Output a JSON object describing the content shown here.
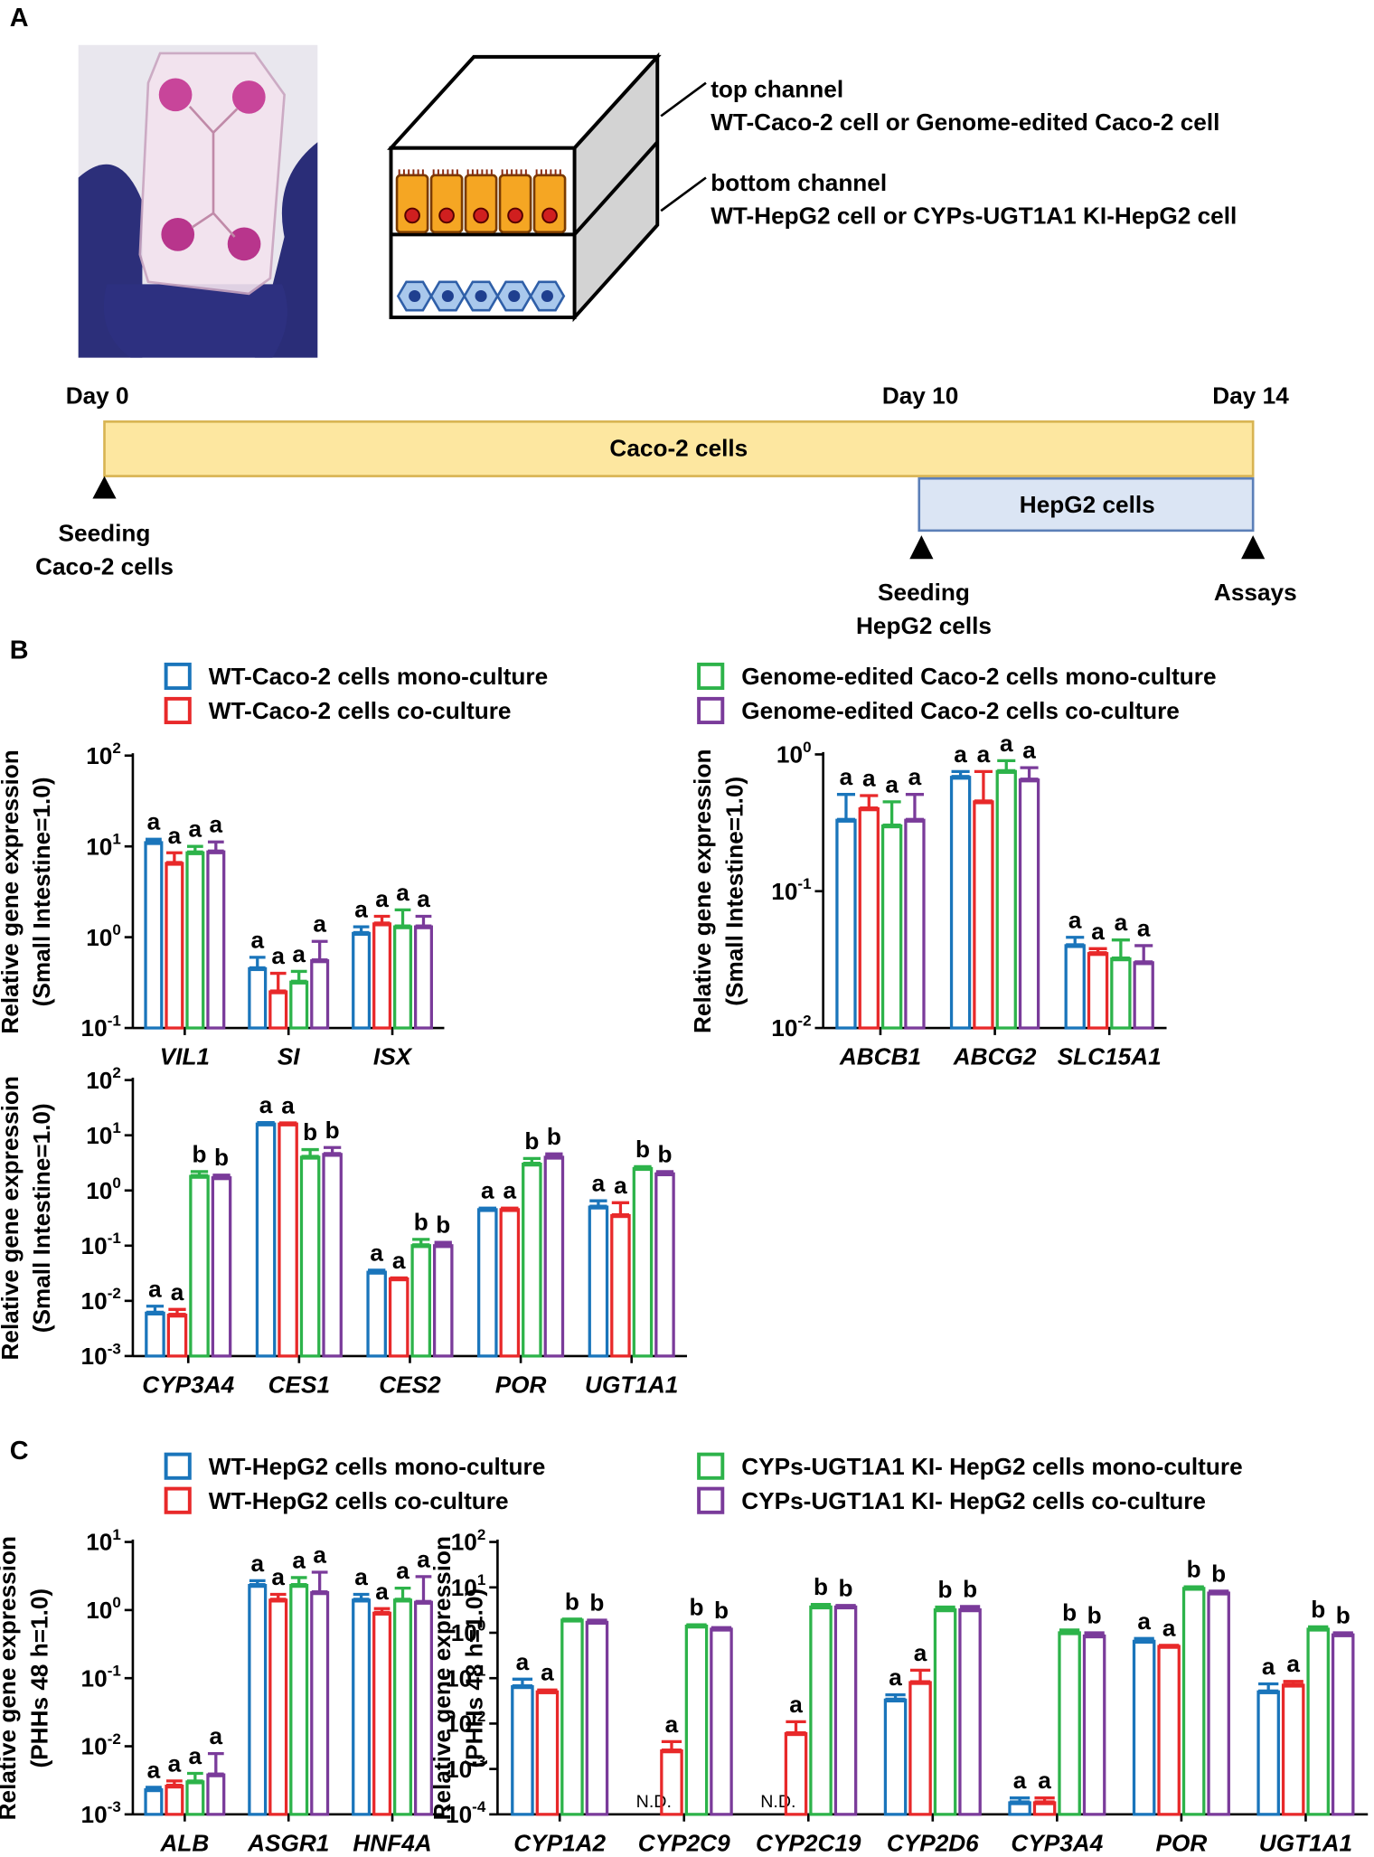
{
  "letters": [
    "A",
    "B",
    "C"
  ],
  "panel_a": {
    "top_channel": "top channel",
    "top_cells": "WT-Caco-2 cell or Genome-edited Caco-2 cell",
    "bottom_channel": "bottom channel",
    "bottom_cells": "WT-HepG2 cell or CYPs-UGT1A1 KI-HepG2 cell",
    "day0": "Day 0",
    "day10": "Day 10",
    "day14": "Day 14",
    "caco_bar": "Caco-2 cells",
    "hepg2_bar": "HepG2 cells",
    "seed_caco": [
      "Seeding",
      "Caco-2 cells"
    ],
    "seed_hepg2": [
      "Seeding",
      "HepG2 cells"
    ],
    "assays": "Assays"
  },
  "legends": {
    "B": [
      "WT-Caco-2 cells mono-culture",
      "WT-Caco-2 cells co-culture",
      "Genome-edited Caco-2 cells mono-culture",
      "Genome-edited Caco-2 cells co-culture"
    ],
    "C": [
      "WT-HepG2 cells mono-culture",
      "WT-HepG2 cells co-culture",
      "CYPs-UGT1A1 KI- HepG2 cells mono-culture",
      "CYPs-UGT1A1 KI- HepG2 cells co-culture"
    ]
  },
  "chart_data": [
    {
      "type": "bar",
      "ylog": true,
      "ylabel": [
        "Relative gene expression",
        "(Small Intestine=1.0)"
      ],
      "categories": [
        "VIL1",
        "SI",
        "ISX"
      ],
      "ylim": [
        0.1,
        100
      ],
      "yticks": [
        {
          "value": 0.1,
          "label": "10",
          "exp": "-1"
        },
        {
          "value": 1,
          "label": "10",
          "exp": "0"
        },
        {
          "value": 10,
          "label": "10",
          "exp": "1"
        },
        {
          "value": 100,
          "label": "10",
          "exp": "2"
        }
      ],
      "series": [
        {
          "color": "#1a75bb",
          "values": [
            11,
            0.45,
            1.1
          ],
          "errors": [
            1,
            0.15,
            0.2
          ],
          "letters": [
            "a",
            "a",
            "a"
          ]
        },
        {
          "color": "#e8292a",
          "values": [
            6.5,
            0.25,
            1.4
          ],
          "errors": [
            2,
            0.15,
            0.3
          ],
          "letters": [
            "a",
            "a",
            "a"
          ]
        },
        {
          "color": "#2db34a",
          "values": [
            8.5,
            0.32,
            1.3
          ],
          "errors": [
            1.5,
            0.1,
            0.7
          ],
          "letters": [
            "a",
            "a",
            "a"
          ]
        },
        {
          "color": "#7a3b9a",
          "values": [
            8.7,
            0.55,
            1.3
          ],
          "errors": [
            2.5,
            0.35,
            0.4
          ],
          "letters": [
            "a",
            "a",
            "a"
          ]
        }
      ]
    },
    {
      "type": "bar",
      "ylog": true,
      "ylabel": [
        "Relative gene expression",
        "(Small Intestine=1.0)"
      ],
      "categories": [
        "ABCB1",
        "ABCG2",
        "SLC15A1"
      ],
      "ylim": [
        0.01,
        1
      ],
      "yticks": [
        {
          "value": 0.01,
          "label": "10",
          "exp": "-2"
        },
        {
          "value": 0.1,
          "label": "10",
          "exp": "-1"
        },
        {
          "value": 1,
          "label": "10",
          "exp": "0"
        }
      ],
      "series": [
        {
          "color": "#1a75bb",
          "values": [
            0.33,
            0.68,
            0.04
          ],
          "errors": [
            0.18,
            0.07,
            0.006
          ],
          "letters": [
            "a",
            "a",
            "a"
          ]
        },
        {
          "color": "#e8292a",
          "values": [
            0.4,
            0.45,
            0.035
          ],
          "errors": [
            0.1,
            0.3,
            0.003
          ],
          "letters": [
            "a",
            "a",
            "a"
          ]
        },
        {
          "color": "#2db34a",
          "values": [
            0.3,
            0.75,
            0.032
          ],
          "errors": [
            0.15,
            0.15,
            0.012
          ],
          "letters": [
            "a",
            "a",
            "a"
          ]
        },
        {
          "color": "#7a3b9a",
          "values": [
            0.33,
            0.65,
            0.03
          ],
          "errors": [
            0.18,
            0.15,
            0.01
          ],
          "letters": [
            "a",
            "a",
            "a"
          ]
        }
      ]
    },
    {
      "type": "bar",
      "ylog": true,
      "ylabel": [
        "Relative gene expression",
        "(Small Intestine=1.0)"
      ],
      "categories": [
        "CYP3A4",
        "CES1",
        "CES2",
        "POR",
        "UGT1A1"
      ],
      "ylim": [
        0.001,
        100
      ],
      "yticks": [
        {
          "value": 0.001,
          "label": "10",
          "exp": "-3"
        },
        {
          "value": 0.01,
          "label": "10",
          "exp": "-2"
        },
        {
          "value": 0.1,
          "label": "10",
          "exp": "-1"
        },
        {
          "value": 1,
          "label": "10",
          "exp": "0"
        },
        {
          "value": 10,
          "label": "10",
          "exp": "1"
        },
        {
          "value": 100,
          "label": "10",
          "exp": "2"
        }
      ],
      "series": [
        {
          "color": "#1a75bb",
          "values": [
            0.006,
            16,
            0.033,
            0.45,
            0.5
          ],
          "errors": [
            0.002,
            1,
            0.003,
            0.03,
            0.15
          ],
          "letters": [
            "a",
            "a",
            "a",
            "a",
            "a"
          ]
        },
        {
          "color": "#e8292a",
          "values": [
            0.0055,
            16,
            0.025,
            0.45,
            0.35
          ],
          "errors": [
            0.0015,
            0.8,
            0.001,
            0.03,
            0.25
          ],
          "letters": [
            "a",
            "a",
            "a",
            "a",
            "a"
          ]
        },
        {
          "color": "#2db34a",
          "values": [
            1.8,
            4,
            0.1,
            3,
            2.5
          ],
          "errors": [
            0.4,
            1.5,
            0.03,
            0.8,
            0.2
          ],
          "letters": [
            "b",
            "b",
            "b",
            "b",
            "b"
          ]
        },
        {
          "color": "#7a3b9a",
          "values": [
            1.7,
            4.5,
            0.1,
            4,
            2
          ],
          "errors": [
            0.2,
            1.5,
            0.015,
            0.6,
            0.2
          ],
          "letters": [
            "b",
            "b",
            "b",
            "b",
            "b"
          ]
        }
      ]
    },
    {
      "type": "bar",
      "ylog": true,
      "ylabel": [
        "Relative gene expression",
        "(PHHs 48 h=1.0)"
      ],
      "categories": [
        "ALB",
        "ASGR1",
        "HNF4A"
      ],
      "ylim": [
        0.001,
        10
      ],
      "yticks": [
        {
          "value": 0.001,
          "label": "10",
          "exp": "-3"
        },
        {
          "value": 0.01,
          "label": "10",
          "exp": "-2"
        },
        {
          "value": 0.1,
          "label": "10",
          "exp": "-1"
        },
        {
          "value": 1,
          "label": "10",
          "exp": "0"
        },
        {
          "value": 10,
          "label": "10",
          "exp": "1"
        }
      ],
      "series": [
        {
          "color": "#1a75bb",
          "values": [
            0.0023,
            2.3,
            1.4
          ],
          "errors": [
            0.0002,
            0.4,
            0.3
          ],
          "letters": [
            "a",
            "a",
            "a"
          ]
        },
        {
          "color": "#e8292a",
          "values": [
            0.0026,
            1.4,
            0.9
          ],
          "errors": [
            0.0005,
            0.3,
            0.15
          ],
          "letters": [
            "a",
            "a",
            "a"
          ]
        },
        {
          "color": "#2db34a",
          "values": [
            0.003,
            2.3,
            1.4
          ],
          "errors": [
            0.001,
            0.7,
            0.7
          ],
          "letters": [
            "a",
            "a",
            "a"
          ]
        },
        {
          "color": "#7a3b9a",
          "values": [
            0.0038,
            1.8,
            1.3
          ],
          "errors": [
            0.004,
            1.8,
            1.8
          ],
          "letters": [
            "a",
            "a",
            "a"
          ]
        }
      ]
    },
    {
      "type": "bar",
      "ylog": true,
      "ylabel": [
        "Relative gene expression",
        "(PHHs 48 h=1.0)"
      ],
      "categories": [
        "CYP1A2",
        "CYP2C9",
        "CYP2C19",
        "CYP2D6",
        "CYP3A4",
        "POR",
        "UGT1A1"
      ],
      "ylim": [
        0.0001,
        100
      ],
      "yticks": [
        {
          "value": 0.0001,
          "label": "10",
          "exp": "-4"
        },
        {
          "value": 0.001,
          "label": "10",
          "exp": "-3"
        },
        {
          "value": 0.01,
          "label": "10",
          "exp": "-2"
        },
        {
          "value": 0.1,
          "label": "10",
          "exp": "-1"
        },
        {
          "value": 1,
          "label": "10",
          "exp": "0"
        },
        {
          "value": 10,
          "label": "10",
          "exp": "1"
        },
        {
          "value": 100,
          "label": "10",
          "exp": "2"
        }
      ],
      "series": [
        {
          "color": "#1a75bb",
          "values": [
            0.065,
            null,
            null,
            0.033,
            0.00018,
            0.65,
            0.05
          ],
          "errors": [
            0.03,
            null,
            null,
            0.01,
            5e-05,
            0.1,
            0.025
          ],
          "letters": [
            "a",
            "N.D.",
            "N.D.",
            "a",
            "a",
            "a",
            "a"
          ]
        },
        {
          "color": "#e8292a",
          "values": [
            0.05,
            0.0025,
            0.006,
            0.08,
            0.00018,
            0.5,
            0.07
          ],
          "errors": [
            0.005,
            0.0015,
            0.005,
            0.07,
            5e-05,
            0.03,
            0.015
          ],
          "letters": [
            "a",
            "a",
            "a",
            "a",
            "a",
            "a",
            "a"
          ]
        },
        {
          "color": "#2db34a",
          "values": [
            1.9,
            1.4,
            3.7,
            3.2,
            1,
            9.5,
            1.2
          ],
          "errors": [
            0.1,
            0.1,
            0.5,
            0.5,
            0.15,
            0.8,
            0.15
          ],
          "letters": [
            "b",
            "b",
            "b",
            "b",
            "b",
            "b",
            "b"
          ]
        },
        {
          "color": "#7a3b9a",
          "values": [
            1.7,
            1.2,
            3.7,
            3.2,
            0.85,
            7.5,
            0.9
          ],
          "errors": [
            0.2,
            0.1,
            0.3,
            0.6,
            0.15,
            0.8,
            0.1
          ],
          "letters": [
            "b",
            "b",
            "b",
            "b",
            "b",
            "b",
            "b"
          ]
        }
      ]
    }
  ]
}
